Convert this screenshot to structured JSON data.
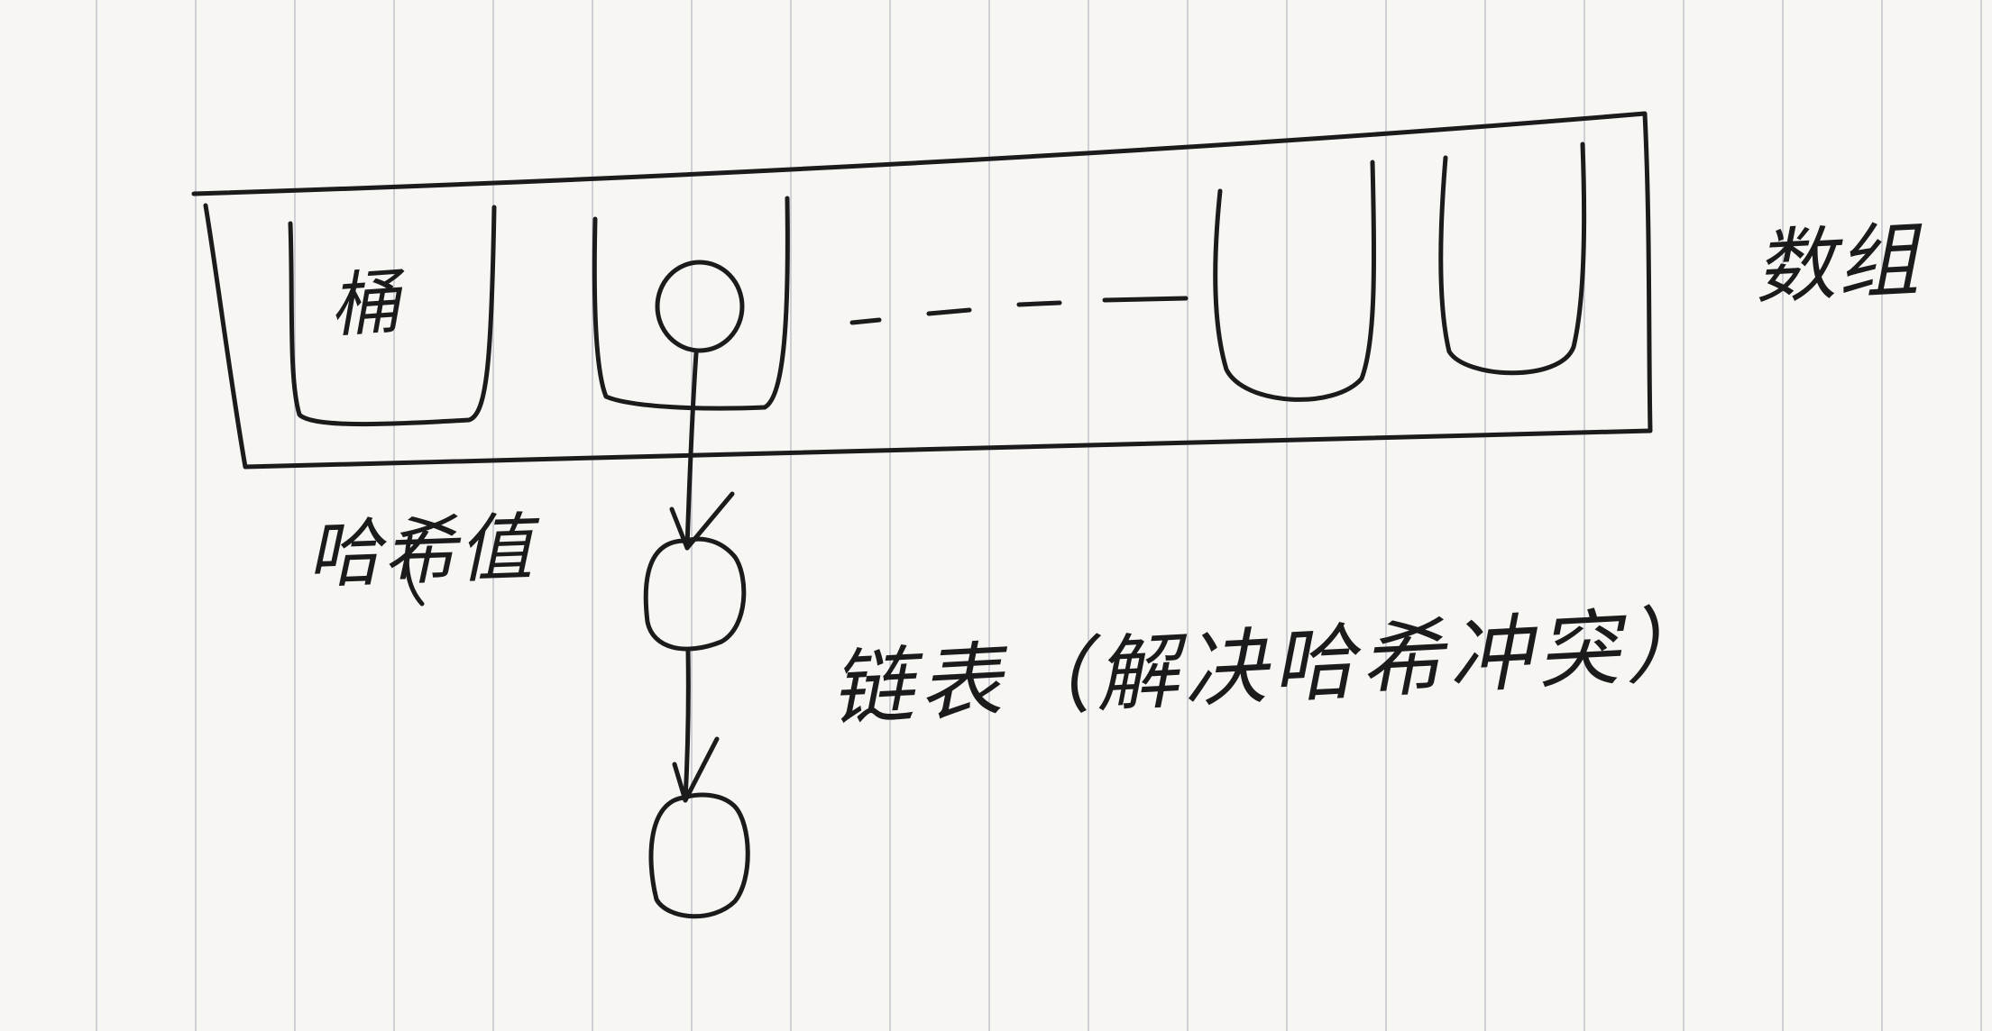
{
  "labels": {
    "bucket": "桶",
    "array": "数组",
    "hash_value": "哈希值",
    "linked_list_note": "链表（解决哈希冲突）"
  },
  "colors": {
    "ink": "#1b1b1b",
    "paper": "#f7f6f3",
    "rule_line": "#cfd0d6"
  }
}
